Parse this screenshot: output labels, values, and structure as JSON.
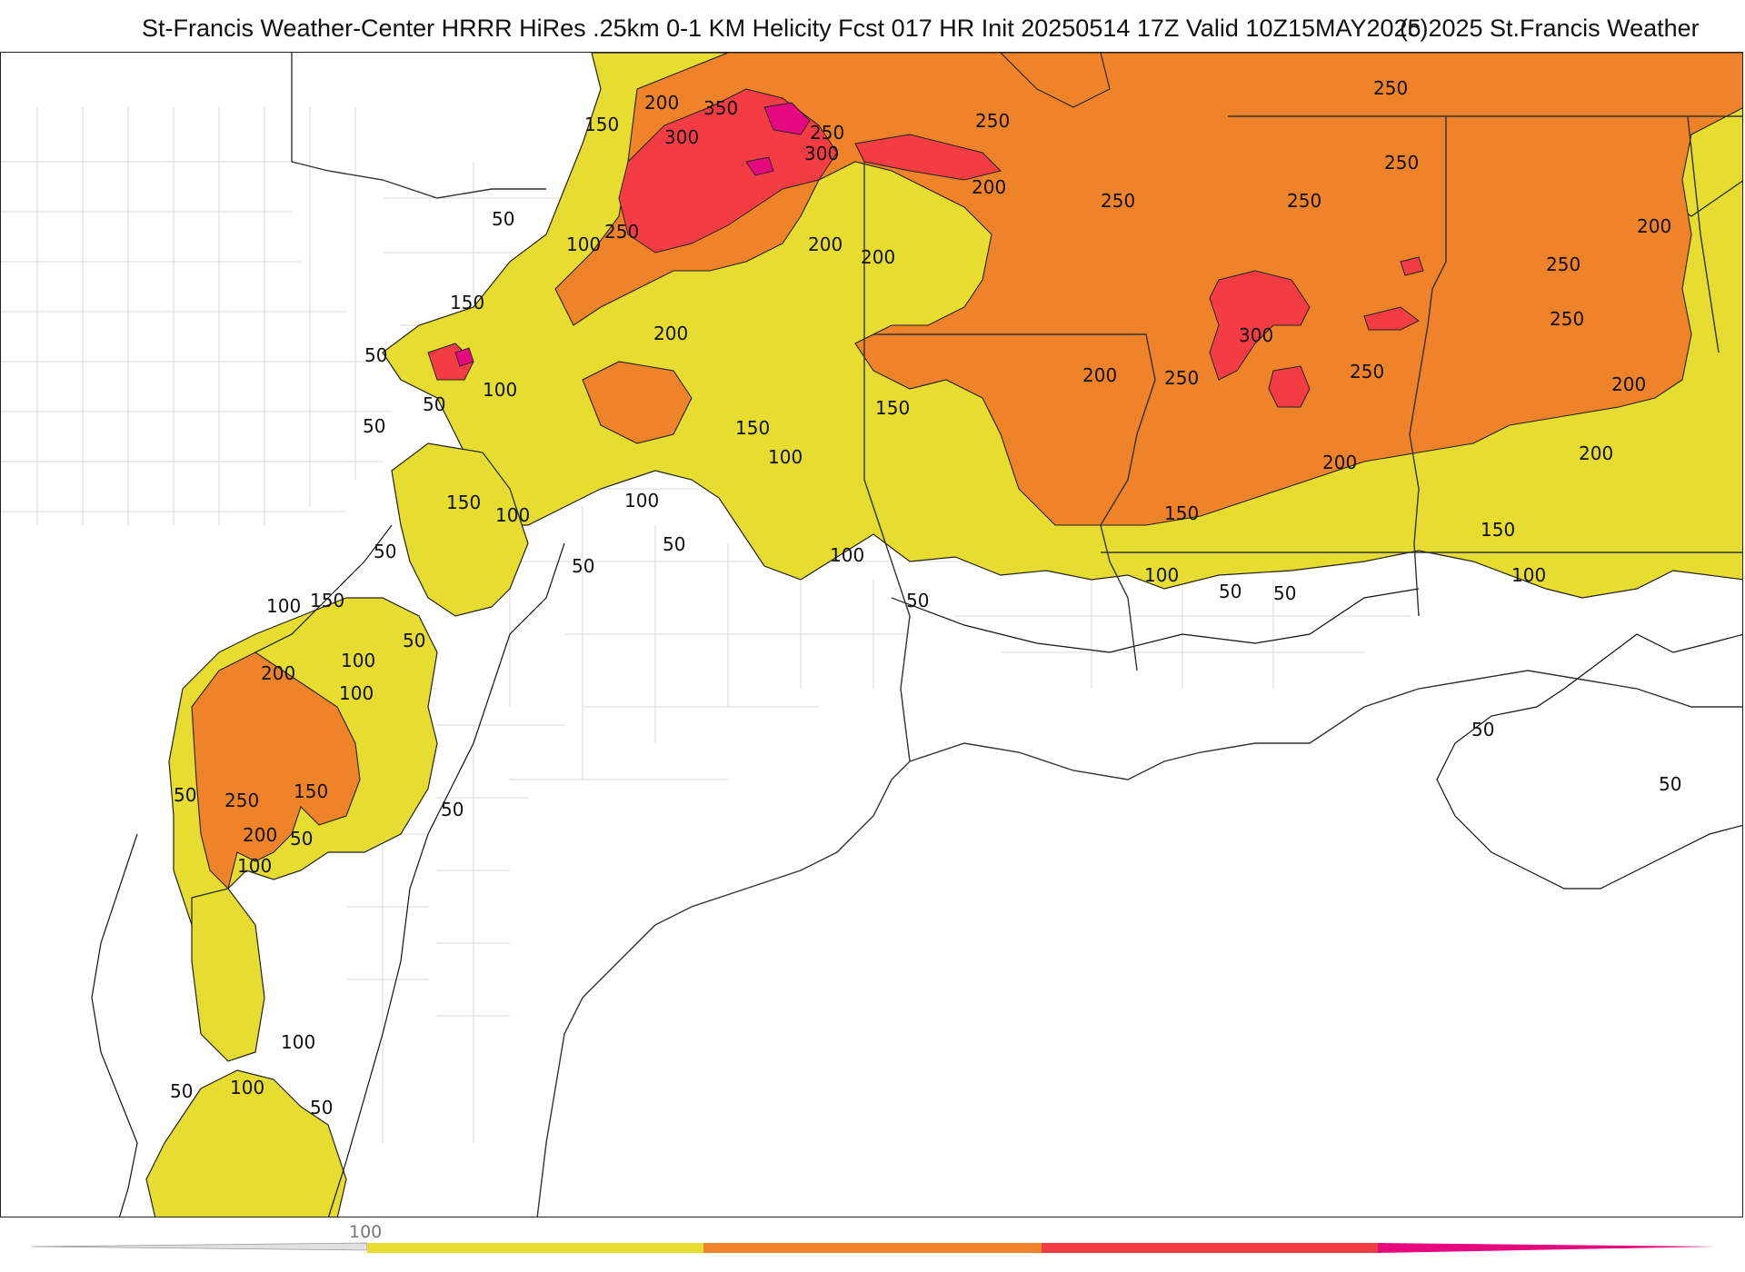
{
  "header": {
    "title": "St-Francis Weather-Center HRRR HiRes .25km 0-1 KM Helicity Fcst 017 HR Init 20250514 17Z  Valid 10Z15MAY2025",
    "copyright": "(c)2025 St.Francis Weather"
  },
  "map": {
    "variable": "0-1 KM Helicity",
    "fill_colors": {
      "100": "#e6dd30",
      "200": "#ef832a",
      "300": "#f43c45",
      "400": "#e6087e"
    },
    "contour_labels": [
      {
        "text": "150"
      },
      {
        "text": "200"
      },
      {
        "text": "350"
      },
      {
        "text": "300"
      },
      {
        "text": "250"
      },
      {
        "text": "300"
      },
      {
        "text": "250"
      },
      {
        "text": "250"
      },
      {
        "text": "200"
      },
      {
        "text": "250"
      },
      {
        "text": "250"
      },
      {
        "text": "250"
      },
      {
        "text": "250"
      },
      {
        "text": "200"
      },
      {
        "text": "50"
      },
      {
        "text": "100"
      },
      {
        "text": "250"
      },
      {
        "text": "200"
      },
      {
        "text": "200"
      },
      {
        "text": "150"
      },
      {
        "text": "200"
      },
      {
        "text": "100"
      },
      {
        "text": "50"
      },
      {
        "text": "50"
      },
      {
        "text": "300"
      },
      {
        "text": "200"
      },
      {
        "text": "250"
      },
      {
        "text": "250"
      },
      {
        "text": "250"
      },
      {
        "text": "150"
      },
      {
        "text": "150"
      },
      {
        "text": "100"
      },
      {
        "text": "200"
      },
      {
        "text": "200"
      },
      {
        "text": "200"
      },
      {
        "text": "100"
      },
      {
        "text": "150"
      },
      {
        "text": "150"
      },
      {
        "text": "100"
      },
      {
        "text": "150"
      },
      {
        "text": "50"
      },
      {
        "text": "100"
      },
      {
        "text": "50"
      },
      {
        "text": "50"
      },
      {
        "text": "100"
      },
      {
        "text": "100"
      },
      {
        "text": "150"
      },
      {
        "text": "100"
      },
      {
        "text": "50"
      },
      {
        "text": "50"
      },
      {
        "text": "50"
      },
      {
        "text": "100"
      },
      {
        "text": "200"
      },
      {
        "text": "100"
      },
      {
        "text": "50"
      },
      {
        "text": "250"
      },
      {
        "text": "150"
      },
      {
        "text": "50"
      },
      {
        "text": "200"
      },
      {
        "text": "50"
      },
      {
        "text": "100"
      },
      {
        "text": "50"
      },
      {
        "text": "50"
      },
      {
        "text": "50"
      },
      {
        "text": "100"
      },
      {
        "text": "100"
      },
      {
        "text": "50"
      },
      {
        "text": "50"
      },
      {
        "text": "50"
      }
    ]
  },
  "legend": {
    "tick_label": "100",
    "colors": [
      "#e6dd30",
      "#ef832a",
      "#f43c45",
      "#e6087e"
    ]
  }
}
